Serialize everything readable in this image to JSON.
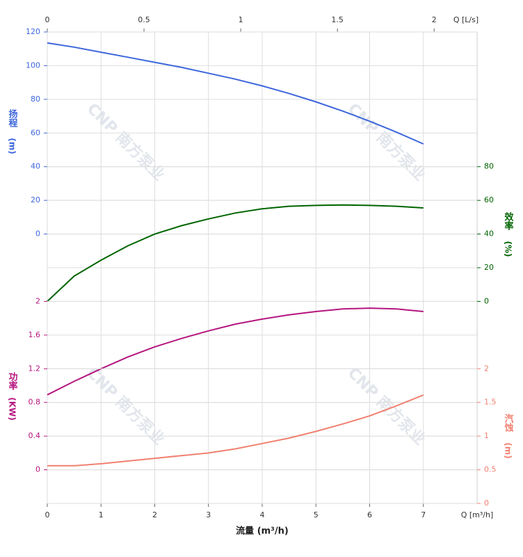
{
  "chart_data": {
    "type": "line",
    "x_label": "流量 (m³/h)",
    "x_unit": "Q [m³/h]",
    "xlim": [
      0,
      8
    ],
    "xticks": [
      0,
      1,
      2,
      3,
      4,
      5,
      6,
      7
    ],
    "top_axis": {
      "unit": "Q [L/s]",
      "xlim": [
        0,
        2.2222
      ],
      "xticks": [
        0,
        0.5,
        1,
        1.5,
        2
      ]
    },
    "grid": true,
    "watermark": "CNP 南方泵业",
    "x": [
      0,
      0.5,
      1,
      1.5,
      2,
      2.5,
      3,
      3.5,
      4,
      4.5,
      5,
      5.5,
      6,
      6.5,
      7
    ],
    "series": [
      {
        "name": "扬程",
        "unit": "(m)",
        "color": "#3d66dc",
        "side": "left",
        "ylim": [
          -160,
          120
        ],
        "yticks": [
          0,
          20,
          40,
          60,
          80,
          100,
          120
        ],
        "values": [
          113.5,
          111,
          108,
          105,
          102,
          99,
          95.5,
          92,
          88,
          83.5,
          78.5,
          73,
          67,
          60.5,
          53.5
        ]
      },
      {
        "name": "效率",
        "unit": "(%)",
        "color": "#006400",
        "side": "right",
        "ylim": [
          -120,
          160
        ],
        "yticks": [
          0,
          20,
          40,
          60,
          80
        ],
        "values": [
          0,
          15,
          24.5,
          33,
          40,
          45,
          49,
          52.5,
          55,
          56.5,
          57,
          57.3,
          57,
          56.5,
          55.5
        ]
      },
      {
        "name": "功率",
        "unit": "(KW)",
        "color": "#b5157f",
        "side": "left",
        "ylim": [
          -0.4,
          5.2
        ],
        "yticks": [
          0,
          0.4,
          0.8,
          1.2,
          1.6,
          2
        ],
        "values": [
          0.89,
          1.05,
          1.2,
          1.34,
          1.46,
          1.56,
          1.65,
          1.73,
          1.79,
          1.84,
          1.88,
          1.91,
          1.92,
          1.91,
          1.88
        ]
      },
      {
        "name": "汽蚀",
        "unit": "(m)",
        "color": "#f08070",
        "side": "right",
        "ylim": [
          0,
          7
        ],
        "yticks": [
          0,
          0.5,
          1,
          1.5,
          2
        ],
        "values": [
          0.56,
          0.56,
          0.59,
          0.63,
          0.67,
          0.71,
          0.75,
          0.81,
          0.89,
          0.97,
          1.07,
          1.18,
          1.3,
          1.45,
          1.61
        ]
      }
    ]
  }
}
